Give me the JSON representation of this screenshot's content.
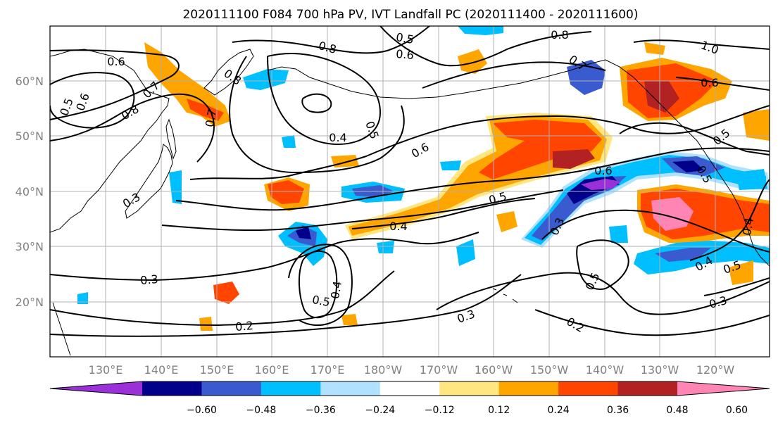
{
  "title": "2020111100 F084 700 hPa PV, IVT Landfall PC (2020111400 - 2020111600)",
  "lon_ticks": [
    "130°E",
    "140°E",
    "150°E",
    "160°E",
    "170°E",
    "180°W",
    "170°W",
    "160°W",
    "150°W",
    "140°W",
    "130°W",
    "120°W"
  ],
  "lat_ticks": [
    "60°N",
    "50°N",
    "40°N",
    "30°N",
    "20°N"
  ],
  "colorbar": {
    "colors": [
      "#9b30d9",
      "#00008b",
      "#3a5bcf",
      "#00bfff",
      "#b0e2ff",
      "#ffffff",
      "#ffe680",
      "#ffa500",
      "#ff4500",
      "#b22222",
      "#ff85b4"
    ],
    "tick_labels": [
      "−0.60",
      "−0.48",
      "−0.36",
      "−0.24",
      "−0.12",
      "0.12",
      "0.24",
      "0.36",
      "0.48",
      "0.60"
    ]
  },
  "contour_labels": [
    "0.6",
    "0.5",
    "0.6",
    "0.8",
    "0.7",
    "0.8",
    "0.7",
    "0.5",
    "0.8",
    "0.6",
    "0.8",
    "1.0",
    "0.7",
    "0.6",
    "0.4",
    "0.5",
    "0.6",
    "0.5",
    "0.3",
    "0.4",
    "0.5",
    "0.6",
    "0.3",
    "0.5",
    "0.4",
    "0.3",
    "0.5",
    "0.4",
    "0.3",
    "0.2",
    "0.5",
    "0.4",
    "0.3",
    "0.2",
    "0.5"
  ]
}
